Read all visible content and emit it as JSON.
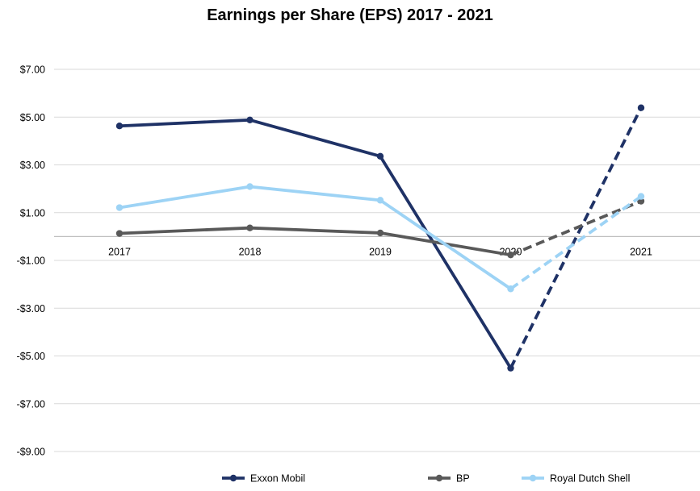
{
  "chart_data": {
    "type": "line",
    "title": "Earnings per Share (EPS) 2017 -  2021",
    "xlabel": "",
    "ylabel": "",
    "categories": [
      "2017",
      "2018",
      "2019",
      "2020",
      "2021"
    ],
    "ylim": [
      -9,
      7
    ],
    "yticks": [
      7,
      5,
      3,
      1,
      -1,
      -3,
      -5,
      -7,
      -9
    ],
    "ytick_labels": [
      "$7.00",
      "$5.00",
      "$3.00",
      "$1.00",
      "-$1.00",
      "-$3.00",
      "-$5.00",
      "-$7.00",
      "-$9.00"
    ],
    "grid": true,
    "legend_position": "bottom",
    "dashed_from_category": "2020",
    "series": [
      {
        "name": "Exxon Mobil",
        "color": "#1f3266",
        "values": [
          4.63,
          4.88,
          3.36,
          -5.51,
          5.39
        ]
      },
      {
        "name": "BP",
        "color": "#595959",
        "values": [
          0.13,
          0.36,
          0.15,
          -0.77,
          1.48
        ]
      },
      {
        "name": "Royal Dutch Shell",
        "color": "#9dd3f5",
        "values": [
          1.21,
          2.09,
          1.52,
          -2.19,
          1.68
        ]
      }
    ]
  }
}
